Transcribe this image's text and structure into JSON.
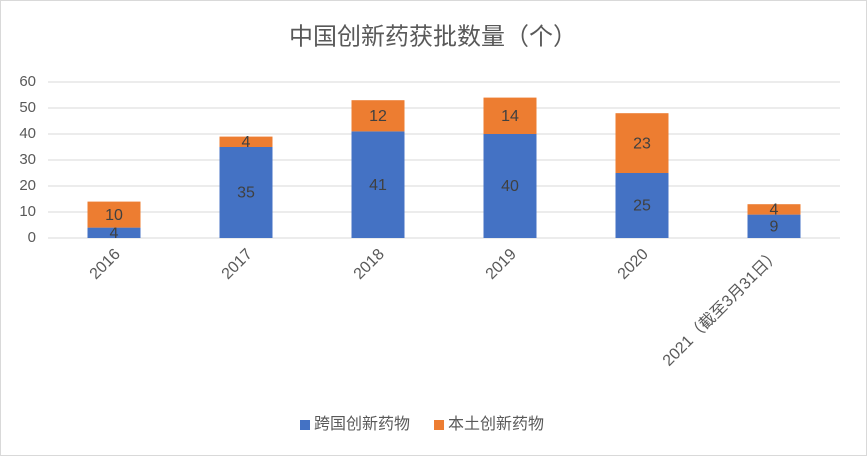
{
  "chart_data": {
    "type": "bar",
    "stacked": true,
    "title": "中国创新药获批数量（个）",
    "categories": [
      "2016",
      "2017",
      "2018",
      "2019",
      "2020",
      "2021（截至3月31日）"
    ],
    "series": [
      {
        "name": "跨国创新药物",
        "color": "#4472c4",
        "values": [
          4,
          35,
          41,
          40,
          25,
          9
        ]
      },
      {
        "name": "本土创新药物",
        "color": "#ed7d31",
        "values": [
          10,
          4,
          12,
          14,
          23,
          4
        ]
      }
    ],
    "ylim": [
      0,
      60
    ],
    "yticks": [
      0,
      10,
      20,
      30,
      40,
      50,
      60
    ],
    "grid": true,
    "legend": "bottom"
  }
}
